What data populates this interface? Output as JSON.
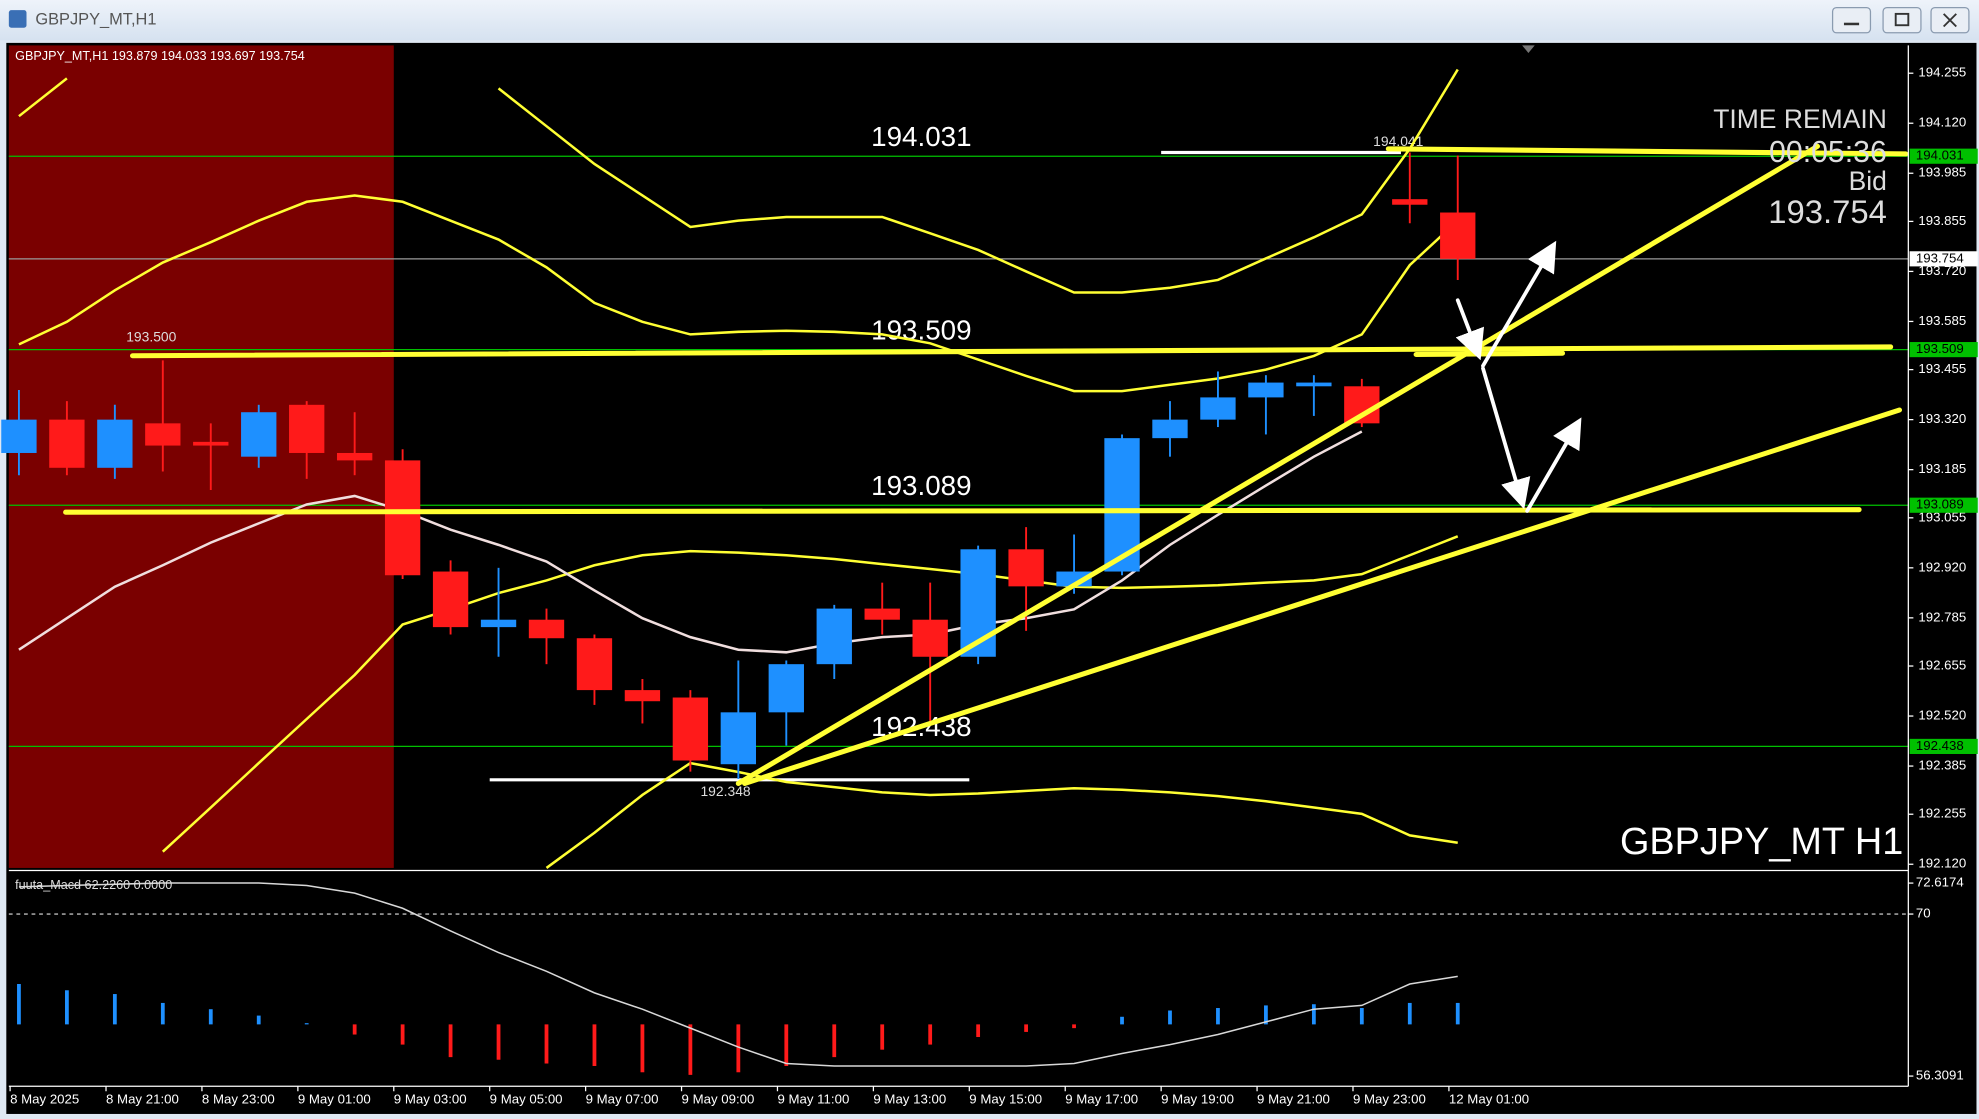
{
  "window": {
    "title": "GBPJPY_MT,H1"
  },
  "chart_data": {
    "type": "candlestick",
    "header": "GBPJPY_MT,H1 193.879 194.033 193.697 193.754",
    "symbol_label": "GBPJPY_MT H1",
    "categories": [
      "8 May 2025",
      null,
      "8 May 21:00",
      null,
      "8 May 23:00",
      null,
      "9 May 01:00",
      null,
      "9 May 03:00",
      null,
      "9 May 05:00",
      null,
      "9 May 07:00",
      null,
      "9 May 09:00",
      null,
      "9 May 11:00",
      null,
      "9 May 13:00",
      null,
      "9 May 15:00",
      null,
      "9 May 17:00",
      null,
      "9 May 19:00",
      null,
      "9 May 21:00",
      null,
      "9 May 23:00",
      null,
      "12 May 01:00"
    ],
    "open": [
      193.23,
      193.32,
      193.19,
      193.31,
      193.26,
      193.22,
      193.36,
      193.23,
      193.21,
      192.91,
      192.76,
      192.78,
      192.73,
      192.59,
      192.57,
      192.39,
      192.53,
      192.66,
      192.81,
      192.78,
      192.68,
      192.97,
      192.87,
      192.91,
      193.27,
      193.32,
      193.38,
      193.41,
      193.41,
      193.915,
      193.879
    ],
    "high": [
      193.4,
      193.37,
      193.36,
      193.48,
      193.31,
      193.36,
      193.37,
      193.34,
      193.24,
      192.94,
      192.92,
      192.81,
      192.74,
      192.62,
      192.59,
      192.67,
      192.67,
      192.82,
      192.88,
      192.88,
      192.98,
      193.03,
      193.01,
      193.28,
      193.37,
      193.45,
      193.44,
      193.44,
      193.43,
      194.041,
      194.033
    ],
    "low": [
      193.17,
      193.17,
      193.16,
      193.18,
      193.13,
      193.19,
      193.16,
      193.17,
      192.89,
      192.74,
      192.68,
      192.66,
      192.55,
      192.5,
      192.37,
      192.35,
      192.44,
      192.62,
      192.74,
      192.5,
      192.66,
      192.75,
      192.85,
      192.9,
      193.22,
      193.3,
      193.28,
      193.33,
      193.3,
      193.85,
      193.697
    ],
    "close": [
      193.32,
      193.19,
      193.32,
      193.25,
      193.25,
      193.34,
      193.23,
      193.21,
      192.9,
      192.76,
      192.78,
      192.73,
      192.59,
      192.56,
      192.4,
      192.53,
      192.66,
      192.81,
      192.78,
      192.68,
      192.97,
      192.87,
      192.91,
      193.27,
      193.32,
      193.38,
      193.42,
      193.42,
      193.31,
      193.9,
      193.754
    ],
    "up_color": "#1e90ff",
    "down_color": "#ff1a1a",
    "series": [
      {
        "color": "#ffff33",
        "values": [
          194.139,
          194.241,
          null,
          null,
          null,
          null,
          null,
          null,
          null,
          null,
          194.214,
          194.112,
          194.01,
          193.925,
          193.84,
          193.857,
          193.867,
          193.867,
          193.867,
          193.823,
          193.778,
          193.72,
          193.663,
          193.663,
          193.676,
          193.697,
          193.755,
          193.812,
          193.874,
          194.051,
          194.265
        ]
      },
      {
        "color": "#ffff33",
        "values": [
          193.523,
          193.584,
          193.669,
          193.744,
          193.799,
          193.857,
          193.908,
          193.925,
          193.908,
          193.857,
          193.806,
          193.731,
          193.635,
          193.584,
          193.55,
          193.557,
          193.56,
          193.557,
          193.55,
          193.526,
          193.482,
          193.438,
          193.397,
          193.397,
          193.414,
          193.431,
          193.455,
          193.492,
          193.55,
          193.737,
          193.857
        ]
      },
      {
        "color": "#ffff33",
        "values": [
          null,
          null,
          null,
          192.154,
          192.273,
          192.393,
          192.512,
          192.631,
          192.767,
          192.808,
          192.852,
          192.886,
          192.927,
          192.954,
          192.965,
          192.961,
          192.954,
          192.944,
          192.93,
          192.917,
          192.903,
          192.886,
          192.869,
          192.866,
          192.869,
          192.873,
          192.88,
          192.886,
          192.903,
          192.954,
          193.005
        ]
      },
      {
        "color": "#ffff33",
        "values": [
          null,
          null,
          null,
          null,
          null,
          null,
          null,
          null,
          null,
          null,
          null,
          192.11,
          192.205,
          192.307,
          192.393,
          192.369,
          192.342,
          192.328,
          192.314,
          192.307,
          192.311,
          192.318,
          192.325,
          192.321,
          192.314,
          192.304,
          192.29,
          192.273,
          192.256,
          192.198,
          192.178
        ]
      },
      {
        "color": "#f0dede",
        "values": [
          192.699,
          192.784,
          192.869,
          192.927,
          192.988,
          193.04,
          193.091,
          193.114,
          193.074,
          193.023,
          192.982,
          192.937,
          192.859,
          192.784,
          192.733,
          192.699,
          192.692,
          192.716,
          192.733,
          192.74,
          192.767,
          192.784,
          192.808,
          192.886,
          192.982,
          193.063,
          193.142,
          193.22,
          193.288,
          null,
          null
        ]
      }
    ],
    "ylim": [
      192.11,
      194.33
    ],
    "yticks": [
      194.255,
      {
        "value": 194.12,
        "label": "194.120"
      },
      193.985,
      193.855,
      {
        "value": 193.72,
        "label": "193.720"
      },
      193.585,
      193.455,
      {
        "value": 193.32,
        "label": "193.320"
      },
      193.185,
      193.055,
      {
        "value": 192.92,
        "label": "192.920"
      },
      192.785,
      192.655,
      {
        "value": 192.52,
        "label": "192.520"
      },
      192.385,
      192.255,
      {
        "value": 192.12,
        "label": "192.120"
      }
    ],
    "levels": [
      194.031,
      193.509,
      193.089,
      192.438
    ],
    "level_color": "#00c000",
    "annotations": [
      {
        "value": 193.5,
        "label": "193.500"
      },
      {
        "value": 194.041,
        "label": "194.041"
      },
      {
        "value": 192.348,
        "label": "192.348"
      }
    ],
    "overlay": {
      "time_remain_label": "TIME REMAIN",
      "time_remain": "00:05:36",
      "bid_label": "Bid",
      "bid": 193.754
    },
    "macd": {
      "label": "fuuta_Macd 62.2260 0.0000",
      "ylim": [
        55.56,
        73.47
      ],
      "yticks": [
        72.6174,
        70,
        56.3091
      ],
      "levels": [
        70
      ],
      "histogram": [
        64.09,
        63.56,
        63.24,
        62.49,
        61.96,
        61.42,
        60.78,
        59.82,
        58.97,
        57.91,
        57.69,
        57.37,
        57.16,
        56.63,
        56.41,
        56.63,
        57.16,
        57.91,
        58.54,
        58.97,
        59.61,
        60.04,
        60.36,
        61.32,
        61.85,
        62.06,
        62.28,
        62.38,
        62.06,
        62.49,
        62.49
      ],
      "line": [
        72.3,
        72.41,
        72.52,
        72.62,
        72.62,
        72.62,
        72.41,
        71.77,
        70.49,
        68.57,
        66.75,
        65.16,
        63.34,
        61.96,
        60.36,
        58.76,
        57.37,
        57.16,
        57.16,
        57.16,
        57.16,
        57.16,
        57.37,
        58.22,
        58.97,
        59.82,
        60.89,
        61.96,
        62.28,
        64.09,
        64.73
      ],
      "line_color": "#d8d8d8"
    }
  }
}
